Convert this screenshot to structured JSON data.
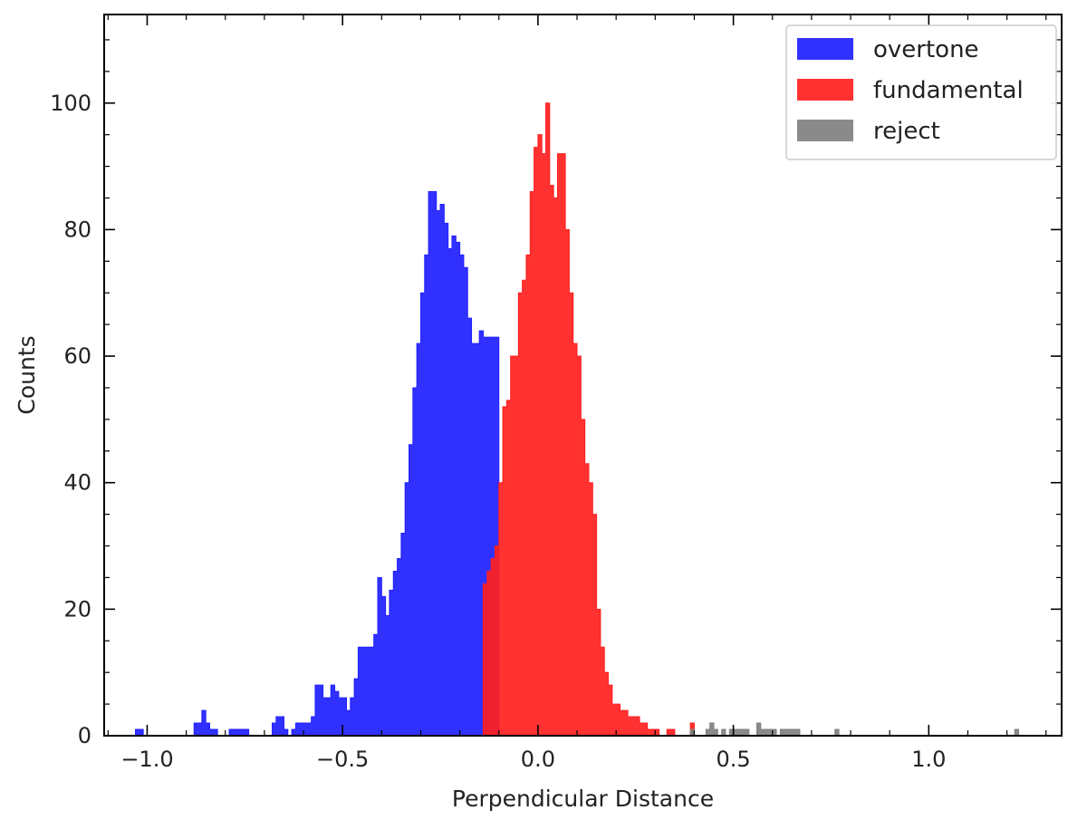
{
  "chart_data": {
    "type": "bar",
    "xlabel": "Perpendicular Distance",
    "ylabel": "Counts",
    "xlim": [
      -1.11,
      1.34
    ],
    "ylim": [
      0,
      114
    ],
    "xticks": [
      -1.0,
      -0.5,
      0.0,
      0.5,
      1.0
    ],
    "xtick_labels": [
      "−1.0",
      "−0.5",
      "0.0",
      "0.5",
      "1.0"
    ],
    "yticks": [
      0,
      20,
      40,
      60,
      80,
      100
    ],
    "ytick_labels": [
      "0",
      "20",
      "40",
      "60",
      "80",
      "100"
    ],
    "grid": false,
    "legend_position": "top-right",
    "bin_width": 0.01,
    "series": [
      {
        "name": "overtone",
        "color": "#2020ff",
        "bin_start": -1.03,
        "values": [
          1,
          1,
          0,
          0,
          0,
          0,
          0,
          0,
          0,
          0,
          0,
          0,
          0,
          0,
          0,
          2,
          2,
          4,
          2,
          1,
          1,
          0,
          0,
          0,
          1,
          1,
          1,
          1,
          1,
          0,
          0,
          0,
          0,
          0,
          0,
          2,
          3,
          3,
          1,
          0,
          1,
          2,
          2,
          2,
          2,
          3,
          8,
          8,
          6,
          6,
          8,
          7,
          6,
          6,
          4,
          6,
          9,
          14,
          14,
          14,
          14,
          16,
          25,
          22,
          19,
          23,
          26,
          28,
          32,
          40,
          46,
          55,
          62,
          70,
          76,
          86,
          86,
          83,
          84,
          81,
          77,
          79,
          78,
          76,
          74,
          66,
          62,
          62,
          64,
          63,
          63,
          63,
          63
        ]
      },
      {
        "name": "fundamental",
        "color": "#ff2020",
        "bin_start": -0.14,
        "values": [
          24,
          26,
          28,
          30,
          40,
          52,
          53,
          60,
          60,
          70,
          72,
          76,
          86,
          93,
          95,
          92,
          100,
          87,
          85,
          92,
          92,
          80,
          70,
          62,
          60,
          50,
          43,
          40,
          35,
          20,
          14,
          10,
          8,
          5,
          5,
          4,
          4,
          3,
          3,
          3,
          2,
          2,
          1,
          1,
          1,
          0,
          0,
          1,
          1,
          0,
          0,
          0,
          0,
          2
        ]
      },
      {
        "name": "reject",
        "color": "#808080",
        "bin_start": 0.39,
        "values": [
          1,
          0,
          0,
          0,
          1,
          2,
          1,
          0,
          1,
          0,
          1,
          1,
          1,
          1,
          1,
          0,
          0,
          2,
          1,
          1,
          1,
          1,
          0,
          1,
          1,
          1,
          1,
          1,
          0,
          0,
          0,
          0,
          0,
          0,
          0,
          0,
          0,
          1,
          0,
          0,
          0,
          0,
          0,
          0,
          0,
          0,
          0,
          0,
          0,
          0,
          0,
          0,
          0,
          0,
          0,
          0,
          0,
          0,
          0,
          0,
          0,
          0,
          0,
          0,
          0,
          0,
          0,
          0,
          0,
          0,
          0,
          0,
          0,
          0,
          0,
          0,
          0,
          0,
          0,
          0,
          0,
          0,
          0,
          1
        ]
      }
    ]
  }
}
